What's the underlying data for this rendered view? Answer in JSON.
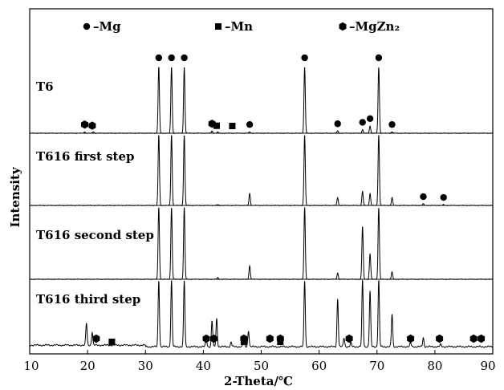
{
  "chart_data": {
    "type": "line",
    "xlabel": "2-Theta/℃",
    "ylabel": "Intensity",
    "xlim": [
      10,
      90
    ],
    "xticks": [
      10,
      20,
      30,
      40,
      50,
      60,
      70,
      80,
      90
    ],
    "grid": false,
    "legend": {
      "placement": "top",
      "entries": [
        {
          "marker": "circle",
          "text": "–Mg"
        },
        {
          "marker": "square",
          "text": "–Mn"
        },
        {
          "marker": "hexagon",
          "text": "–MgZn₂"
        }
      ]
    },
    "series": [
      {
        "name": "T6",
        "peaks": [
          [
            19.5,
            0.02
          ],
          [
            21,
            0.02
          ],
          [
            32.3,
            0.9
          ],
          [
            34.5,
            0.9
          ],
          [
            36.7,
            0.9
          ],
          [
            41.5,
            0.03
          ],
          [
            42.5,
            0.015
          ],
          [
            48,
            0.02
          ],
          [
            57.5,
            0.9
          ],
          [
            63.2,
            0.03
          ],
          [
            67.5,
            0.05
          ],
          [
            68.8,
            0.1
          ],
          [
            70.3,
            0.9
          ],
          [
            72.6,
            0.02
          ]
        ],
        "markers": [
          {
            "x": 19.5,
            "type": "hexagon"
          },
          {
            "x": 20.8,
            "type": "hexagon"
          },
          {
            "x": 32.3,
            "type": "circle"
          },
          {
            "x": 34.5,
            "type": "circle"
          },
          {
            "x": 36.7,
            "type": "circle"
          },
          {
            "x": 41.5,
            "type": "hexagon"
          },
          {
            "x": 42.3,
            "type": "square"
          },
          {
            "x": 45,
            "type": "square"
          },
          {
            "x": 48,
            "type": "circle"
          },
          {
            "x": 57.5,
            "type": "circle"
          },
          {
            "x": 63.2,
            "type": "circle"
          },
          {
            "x": 67.5,
            "type": "circle"
          },
          {
            "x": 68.8,
            "type": "circle"
          },
          {
            "x": 70.3,
            "type": "circle"
          },
          {
            "x": 72.6,
            "type": "circle"
          }
        ]
      },
      {
        "name": "T616 first step",
        "peaks": [
          [
            32.3,
            0.9
          ],
          [
            34.5,
            0.9
          ],
          [
            36.7,
            0.9
          ],
          [
            42.5,
            0.01
          ],
          [
            48,
            0.15
          ],
          [
            57.5,
            0.9
          ],
          [
            63.2,
            0.1
          ],
          [
            67.5,
            0.18
          ],
          [
            68.8,
            0.15
          ],
          [
            70.3,
            0.9
          ],
          [
            72.6,
            0.1
          ],
          [
            78,
            0.02
          ],
          [
            81.5,
            0.01
          ]
        ],
        "markers": [
          {
            "x": 78,
            "type": "circle"
          },
          {
            "x": 81.5,
            "type": "circle"
          }
        ]
      },
      {
        "name": "T616 second step",
        "peaks": [
          [
            32.3,
            0.9
          ],
          [
            34.5,
            0.9
          ],
          [
            36.7,
            0.9
          ],
          [
            42.5,
            0.02
          ],
          [
            48,
            0.17
          ],
          [
            57.5,
            0.9
          ],
          [
            63.2,
            0.08
          ],
          [
            67.5,
            0.66
          ],
          [
            68.8,
            0.32
          ],
          [
            70.3,
            0.9
          ],
          [
            72.6,
            0.09
          ]
        ],
        "markers": []
      },
      {
        "name": "T616 third step",
        "peaks": [
          [
            19.8,
            0.3
          ],
          [
            20.8,
            0.18
          ],
          [
            32.3,
            0.9
          ],
          [
            34.5,
            0.9
          ],
          [
            36.7,
            0.9
          ],
          [
            40.5,
            0.12
          ],
          [
            41.5,
            0.35
          ],
          [
            42.3,
            0.38
          ],
          [
            44.8,
            0.06
          ],
          [
            47,
            0.12
          ],
          [
            47.8,
            0.22
          ],
          [
            57.5,
            0.9
          ],
          [
            63.2,
            0.65
          ],
          [
            64.3,
            0.12
          ],
          [
            65.5,
            0.05
          ],
          [
            67.5,
            0.9
          ],
          [
            68.8,
            0.75
          ],
          [
            70.3,
            0.9
          ],
          [
            72.6,
            0.44
          ],
          [
            75.8,
            0.05
          ],
          [
            78,
            0.12
          ],
          [
            81,
            0.03
          ]
        ],
        "markers": [
          {
            "x": 21.5,
            "type": "hexagon"
          },
          {
            "x": 24.2,
            "type": "square"
          },
          {
            "x": 40.5,
            "type": "hexagon"
          },
          {
            "x": 41.8,
            "type": "hexagon"
          },
          {
            "x": 47,
            "type": "hexagon"
          },
          {
            "x": 47,
            "type": "square"
          },
          {
            "x": 51.5,
            "type": "hexagon"
          },
          {
            "x": 53.3,
            "type": "hexagon"
          },
          {
            "x": 53.3,
            "type": "square"
          },
          {
            "x": 65.2,
            "type": "hexagon"
          },
          {
            "x": 75.8,
            "type": "hexagon"
          },
          {
            "x": 80.8,
            "type": "hexagon"
          },
          {
            "x": 86.7,
            "type": "hexagon"
          },
          {
            "x": 88,
            "type": "hexagon"
          }
        ]
      }
    ]
  }
}
